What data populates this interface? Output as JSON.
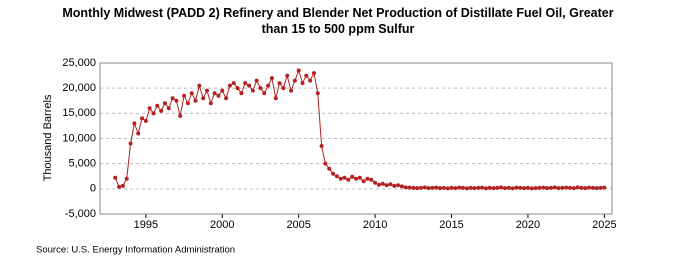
{
  "chart_data": {
    "type": "line",
    "title": "Monthly Midwest (PADD 2) Refinery and Blender Net Production of Distillate Fuel Oil, Greater than 15 to 500 ppm Sulfur",
    "y_label": "Thousand Barrels",
    "source": "Source: U.S. Energy Information Administration",
    "x": [
      1993.0,
      1993.25,
      1993.5,
      1993.75,
      1994.0,
      1994.25,
      1994.5,
      1994.75,
      1995.0,
      1995.25,
      1995.5,
      1995.75,
      1996.0,
      1996.25,
      1996.5,
      1996.75,
      1997.0,
      1997.25,
      1997.5,
      1997.75,
      1998.0,
      1998.25,
      1998.5,
      1998.75,
      1999.0,
      1999.25,
      1999.5,
      1999.75,
      2000.0,
      2000.25,
      2000.5,
      2000.75,
      2001.0,
      2001.25,
      2001.5,
      2001.75,
      2002.0,
      2002.25,
      2002.5,
      2002.75,
      2003.0,
      2003.25,
      2003.5,
      2003.75,
      2004.0,
      2004.25,
      2004.5,
      2004.75,
      2005.0,
      2005.25,
      2005.5,
      2005.75,
      2006.0,
      2006.25,
      2006.5,
      2006.75,
      2007.0,
      2007.25,
      2007.5,
      2007.75,
      2008.0,
      2008.25,
      2008.5,
      2008.75,
      2009.0,
      2009.25,
      2009.5,
      2009.75,
      2010.0,
      2010.25,
      2010.5,
      2010.75,
      2011.0,
      2011.25,
      2011.5,
      2011.75,
      2012.0,
      2012.25,
      2012.5,
      2012.75,
      2013.0,
      2013.25,
      2013.5,
      2013.75,
      2014.0,
      2014.25,
      2014.5,
      2014.75,
      2015.0,
      2015.25,
      2015.5,
      2015.75,
      2016.0,
      2016.25,
      2016.5,
      2016.75,
      2017.0,
      2017.25,
      2017.5,
      2017.75,
      2018.0,
      2018.25,
      2018.5,
      2018.75,
      2019.0,
      2019.25,
      2019.5,
      2019.75,
      2020.0,
      2020.25,
      2020.5,
      2020.75,
      2021.0,
      2021.25,
      2021.5,
      2021.75,
      2022.0,
      2022.25,
      2022.5,
      2022.75,
      2023.0,
      2023.25,
      2023.5,
      2023.75,
      2024.0,
      2024.25,
      2024.5,
      2024.75,
      2025.0
    ],
    "series": [
      {
        "name": "Thousand Barrels",
        "color": "#b22222",
        "values": [
          2200,
          400,
          600,
          2000,
          9000,
          13000,
          11000,
          14000,
          13500,
          16000,
          15000,
          16500,
          15500,
          17000,
          16000,
          18000,
          17500,
          14500,
          18500,
          17000,
          19000,
          17500,
          20500,
          18000,
          19500,
          17000,
          19000,
          18500,
          19500,
          18000,
          20500,
          21000,
          20000,
          19000,
          21000,
          20500,
          19500,
          21500,
          20000,
          19000,
          20500,
          22000,
          18000,
          21000,
          20000,
          22500,
          19500,
          21500,
          23500,
          21000,
          22500,
          21500,
          23000,
          19000,
          8500,
          5000,
          4000,
          3000,
          2500,
          2000,
          2200,
          1800,
          2400,
          2000,
          2200,
          1500,
          2000,
          1800,
          1200,
          800,
          1000,
          700,
          900,
          600,
          700,
          500,
          300,
          250,
          200,
          150,
          200,
          300,
          150,
          200,
          250,
          150,
          200,
          100,
          200,
          150,
          250,
          200,
          100,
          200,
          150,
          200,
          250,
          100,
          200,
          150,
          200,
          300,
          150,
          200,
          100,
          250,
          200,
          150,
          200,
          100,
          150,
          200,
          250,
          150,
          200,
          300,
          150,
          200,
          250,
          200,
          150,
          300,
          200,
          150,
          250,
          200,
          150,
          200,
          250
        ]
      }
    ],
    "xlim": [
      1992,
      2025.5
    ],
    "xticks": [
      1995,
      2000,
      2005,
      2010,
      2015,
      2020,
      2025
    ],
    "ylim": [
      -5000,
      25000
    ],
    "yticks": [
      {
        "value": -5000,
        "label": "-5,000"
      },
      0,
      {
        "value": 5000,
        "label": "5,000"
      },
      {
        "value": 10000,
        "label": "10,000"
      },
      {
        "value": 15000,
        "label": "15,000"
      },
      {
        "value": 20000,
        "label": "20,000"
      },
      {
        "value": 25000,
        "label": "25,000"
      }
    ],
    "grid": true
  }
}
